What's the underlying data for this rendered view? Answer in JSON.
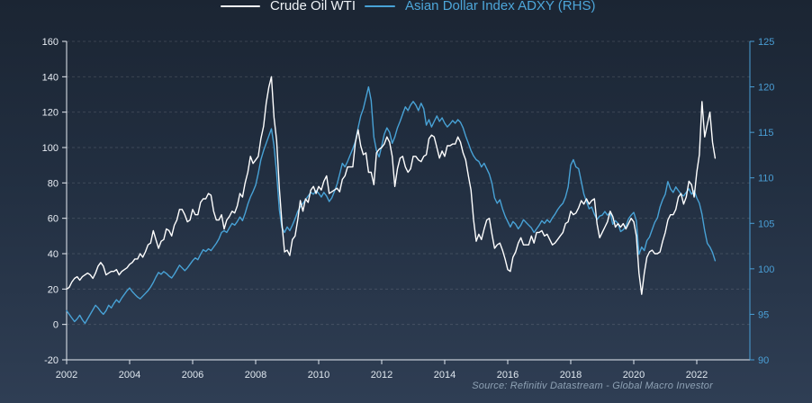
{
  "legend": {
    "items": [
      {
        "label": "Crude Oil WTI",
        "color": "#f2f5f8",
        "text_color": "#eef2f6",
        "swatch_width": 44
      },
      {
        "label": "Asian Dollar Index ADXY (RHS)",
        "color": "#48a2d6",
        "text_color": "#4da6d9",
        "swatch_width": 34
      }
    ]
  },
  "source_note": "Source: Refinitiv Datastream - Global Macro Investor",
  "colors": {
    "background_top": "#1b2533",
    "background_bottom": "#2f3e54",
    "left_axis": "#e8edf4",
    "right_axis": "#4a9fd6",
    "x_labels": "#dfe7ef",
    "grid": "rgba(255,255,255,0.13)"
  },
  "chart_data": {
    "type": "line",
    "title": "",
    "x_start_year": 2002,
    "points_per_year": 12,
    "x_ticks": [
      2002,
      2004,
      2006,
      2008,
      2010,
      2012,
      2014,
      2016,
      2018,
      2020,
      2022
    ],
    "left_axis": {
      "range": [
        -20,
        160
      ],
      "ticks": [
        160,
        140,
        120,
        100,
        80,
        60,
        40,
        20,
        0,
        -20
      ]
    },
    "right_axis": {
      "range": [
        90,
        125
      ],
      "ticks": [
        125,
        120,
        115,
        110,
        105,
        100,
        95,
        90
      ]
    },
    "grid": "dashed horizontal at left-axis ticks",
    "legend_position": "top",
    "series": [
      {
        "name": "Crude Oil WTI",
        "axis": "left",
        "color": "#ffffff",
        "values": [
          20,
          21,
          24,
          26,
          27,
          25,
          27,
          28,
          29,
          28,
          26,
          29,
          33,
          35,
          33,
          28,
          29,
          30,
          30,
          31,
          28,
          30,
          31,
          32,
          34,
          35,
          37,
          37,
          40,
          38,
          41,
          45,
          46,
          53,
          48,
          43,
          47,
          48,
          54,
          53,
          50,
          56,
          59,
          65,
          65,
          62,
          58,
          59,
          65,
          62,
          62,
          69,
          71,
          71,
          74,
          73,
          64,
          59,
          59,
          62,
          54,
          59,
          61,
          64,
          63,
          67,
          74,
          72,
          80,
          86,
          95,
          91,
          93,
          95,
          105,
          112,
          125,
          134,
          140,
          117,
          104,
          77,
          57,
          41,
          42,
          39,
          48,
          50,
          59,
          70,
          64,
          71,
          69,
          76,
          78,
          74,
          78,
          76,
          81,
          84,
          74,
          75,
          76,
          77,
          75,
          82,
          84,
          89,
          89,
          89,
          103,
          110,
          101,
          96,
          97,
          86,
          86,
          79,
          97,
          99,
          100,
          102,
          106,
          103,
          95,
          78,
          88,
          94,
          95,
          89,
          86,
          88,
          95,
          95,
          93,
          92,
          95,
          96,
          105,
          107,
          106,
          100,
          94,
          98,
          95,
          101,
          101,
          102,
          102,
          106,
          103,
          97,
          93,
          84,
          76,
          59,
          47,
          51,
          48,
          54,
          59,
          60,
          51,
          43,
          45,
          46,
          42,
          37,
          31,
          30,
          38,
          41,
          46,
          49,
          45,
          45,
          45,
          50,
          46,
          52,
          52,
          53,
          50,
          51,
          48,
          45,
          46,
          48,
          50,
          52,
          57,
          58,
          64,
          62,
          63,
          66,
          70,
          68,
          71,
          68,
          70,
          71,
          57,
          49,
          52,
          55,
          58,
          64,
          61,
          55,
          57,
          55,
          57,
          54,
          57,
          60,
          58,
          50,
          29,
          17,
          29,
          38,
          41,
          42,
          40,
          40,
          41,
          47,
          52,
          59,
          62,
          62,
          65,
          72,
          74,
          68,
          72,
          81,
          79,
          72,
          86,
          96,
          126,
          106,
          113,
          120,
          103,
          94
        ]
      },
      {
        "name": "Asian Dollar Index ADXY (RHS)",
        "axis": "right",
        "color": "#48a2d6",
        "values": [
          95.4,
          95.0,
          94.6,
          94.2,
          94.5,
          94.9,
          94.4,
          94.0,
          94.5,
          95.0,
          95.5,
          96.0,
          95.7,
          95.3,
          95.0,
          95.4,
          96.0,
          95.7,
          96.2,
          96.6,
          96.3,
          96.8,
          97.2,
          97.6,
          97.9,
          97.5,
          97.2,
          96.9,
          96.7,
          97.0,
          97.3,
          97.6,
          98.0,
          98.5,
          99.1,
          99.6,
          99.4,
          99.7,
          99.5,
          99.2,
          99.0,
          99.4,
          99.9,
          100.4,
          100.1,
          99.8,
          100.1,
          100.5,
          100.9,
          101.2,
          101.0,
          101.6,
          102.1,
          101.9,
          102.2,
          102.0,
          102.4,
          102.8,
          103.3,
          104.0,
          104.2,
          104.0,
          104.5,
          105.0,
          104.8,
          105.2,
          105.7,
          105.3,
          106.1,
          107.1,
          107.9,
          108.5,
          109.2,
          110.5,
          112.0,
          113.0,
          113.8,
          114.6,
          115.4,
          113.5,
          110.5,
          106.5,
          104.5,
          104.0,
          104.6,
          104.2,
          104.8,
          105.5,
          106.3,
          106.8,
          107.2,
          107.6,
          108.0,
          108.4,
          108.2,
          108.6,
          108.3,
          107.9,
          108.4,
          108.0,
          107.4,
          107.8,
          108.5,
          109.3,
          110.4,
          111.6,
          111.2,
          111.8,
          112.5,
          113.2,
          114.0,
          115.5,
          116.8,
          117.6,
          118.8,
          120.0,
          118.5,
          114.5,
          113.0,
          112.3,
          113.5,
          114.8,
          115.5,
          115.0,
          113.8,
          114.5,
          115.5,
          116.2,
          117.0,
          117.8,
          117.4,
          118.0,
          118.4,
          118.0,
          117.4,
          118.2,
          117.6,
          115.8,
          116.4,
          115.6,
          116.2,
          116.8,
          116.2,
          116.6,
          116.0,
          115.6,
          115.9,
          116.3,
          116.0,
          116.4,
          116.1,
          115.5,
          114.6,
          113.8,
          113.0,
          112.4,
          112.0,
          111.8,
          111.2,
          111.6,
          111.0,
          110.4,
          109.4,
          107.8,
          107.2,
          107.6,
          106.6,
          105.8,
          105.2,
          104.6,
          105.2,
          104.9,
          104.4,
          104.8,
          105.4,
          105.1,
          104.8,
          104.5,
          104.0,
          104.4,
          104.8,
          105.3,
          105.0,
          105.4,
          105.1,
          105.6,
          106.0,
          106.5,
          106.9,
          107.2,
          107.9,
          109.0,
          111.4,
          112.0,
          111.2,
          111.0,
          109.6,
          108.2,
          107.4,
          106.6,
          106.8,
          106.0,
          105.4,
          105.8,
          105.9,
          106.3,
          105.9,
          106.2,
          104.9,
          105.3,
          105.0,
          104.1,
          104.3,
          104.7,
          105.5,
          105.9,
          106.2,
          105.3,
          101.6,
          102.4,
          102.0,
          103.1,
          103.5,
          104.3,
          105.1,
          105.6,
          106.8,
          107.6,
          108.2,
          109.6,
          108.8,
          108.4,
          109.0,
          108.6,
          108.2,
          108.0,
          108.4,
          108.8,
          108.2,
          108.6,
          107.8,
          107.2,
          106.0,
          104.2,
          102.8,
          102.4,
          101.8,
          100.9
        ]
      }
    ],
    "source": "Source: Refinitiv Datastream - Global Macro Investor"
  }
}
